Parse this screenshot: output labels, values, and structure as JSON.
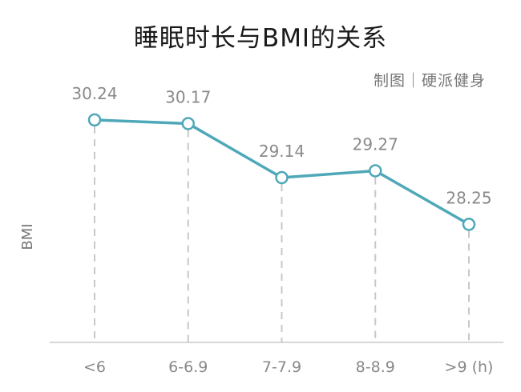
{
  "chart_data": {
    "type": "line",
    "title": "睡眠时长与BMI的关系",
    "credit": "制图｜硬派健身",
    "ylabel": "BMI",
    "xlabel": "",
    "categories": [
      "<6",
      "6-6.9",
      "7-7.9",
      "8-8.9",
      ">9 (h)"
    ],
    "values": [
      30.24,
      30.17,
      29.14,
      29.27,
      28.25
    ],
    "ylim": [
      26,
      31
    ],
    "grid": false,
    "line_color": "#4ea8b8",
    "guide_color": "#c8c8c8",
    "axis_color": "#c8c8c8"
  }
}
